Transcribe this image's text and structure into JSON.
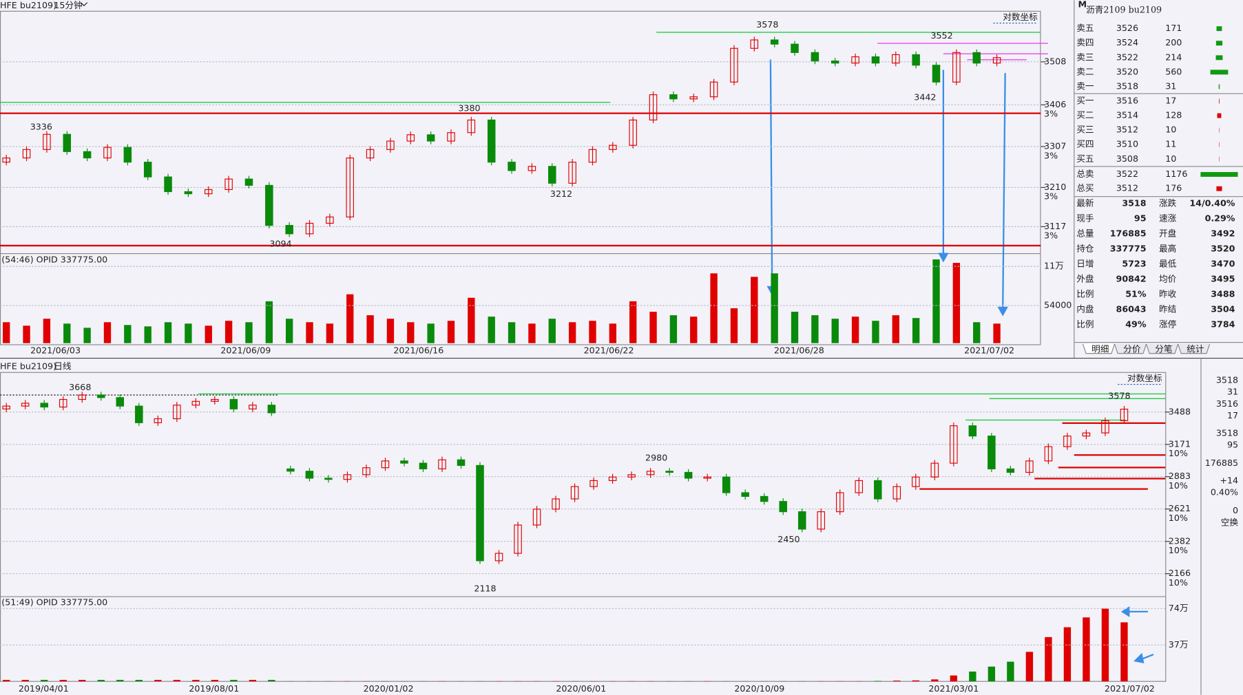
{
  "upper": {
    "symbol": "HFE bu2109)",
    "period": "15分钟",
    "log_label": "对数坐标",
    "ylim": [
      3053,
      3628
    ],
    "yticks": [
      3508,
      3406,
      3307,
      3210,
      3117
    ],
    "pct_labels": [
      "3%",
      "3%",
      "3%",
      "3%"
    ],
    "open": [
      3270,
      3280,
      3300,
      3336,
      3295,
      3280,
      3305,
      3270,
      3235,
      3200,
      3195,
      3205,
      3230,
      3215,
      3120,
      3100,
      3125,
      3140,
      3280,
      3300,
      3320,
      3335,
      3320,
      3340,
      3370,
      3270,
      3250,
      3260,
      3220,
      3270,
      3300,
      3310,
      3370,
      3430,
      3420,
      3425,
      3460,
      3540,
      3560,
      3550,
      3530,
      3510,
      3505,
      3520,
      3505,
      3525,
      3500,
      3460,
      3530,
      3505
    ],
    "close": [
      3280,
      3300,
      3336,
      3295,
      3280,
      3305,
      3270,
      3235,
      3200,
      3195,
      3205,
      3230,
      3215,
      3120,
      3100,
      3125,
      3140,
      3280,
      3300,
      3320,
      3335,
      3320,
      3340,
      3370,
      3270,
      3250,
      3260,
      3220,
      3270,
      3300,
      3310,
      3370,
      3430,
      3420,
      3425,
      3460,
      3540,
      3560,
      3550,
      3530,
      3510,
      3505,
      3520,
      3505,
      3525,
      3500,
      3460,
      3530,
      3505,
      3518
    ],
    "annotations": [
      3578,
      3552,
      3442,
      3380,
      3336,
      3212,
      3094
    ],
    "levels": [
      {
        "value": 3578,
        "color": "#22cc44"
      },
      {
        "value": 3412,
        "color": "#22cc44"
      },
      {
        "value": 3386,
        "color": "#dd0000"
      },
      {
        "value": 3072,
        "color": "#dd0000"
      },
      {
        "value": 3552,
        "color": "#ee44ee"
      },
      {
        "value": 3527,
        "color": "#ee44ee"
      },
      {
        "value": 3513,
        "color": "#ee44ee"
      }
    ],
    "vol_label": "(54:46)  OPID 337775.00",
    "volume": [
      30000,
      25000,
      35000,
      28000,
      22000,
      30000,
      26000,
      24000,
      30000,
      28000,
      25000,
      32000,
      30000,
      60000,
      35000,
      30000,
      28000,
      70000,
      40000,
      35000,
      30000,
      28000,
      32000,
      65000,
      38000,
      30000,
      28000,
      35000,
      30000,
      32000,
      28000,
      60000,
      45000,
      40000,
      38000,
      100000,
      50000,
      95000,
      100000,
      45000,
      40000,
      35000,
      38000,
      32000,
      40000,
      36000,
      120000,
      115000,
      30000,
      28000
    ],
    "vol_ylim": [
      0,
      126000
    ],
    "vol_yticks": [
      {
        "value": 110000,
        "label": "11万"
      },
      54000
    ],
    "dates": [
      "2021/06/03",
      "2021/06/09",
      "2021/06/16",
      "2021/06/22",
      "2021/06/28",
      "2021/07/02"
    ]
  },
  "lower": {
    "symbol": "HFE bu2109)",
    "period": "日线",
    "log_label": "对数坐标",
    "ylim": [
      2029,
      3920
    ],
    "yticks": [
      3488,
      3171,
      2883,
      2621,
      2382,
      2166
    ],
    "pct_labels": [
      "10%",
      "10%",
      "10%",
      "10%",
      "10%"
    ],
    "open": [
      3520,
      3550,
      3580,
      3540,
      3620,
      3668,
      3640,
      3550,
      3380,
      3420,
      3560,
      3600,
      3620,
      3520,
      3560,
      2950,
      2930,
      2870,
      2860,
      2900,
      2960,
      3020,
      3000,
      2950,
      3030,
      2980,
      2250,
      2300,
      2500,
      2620,
      2700,
      2800,
      2850,
      2880,
      2900,
      2930,
      2920,
      2870,
      2880,
      2750,
      2720,
      2680,
      2600,
      2470,
      2600,
      2750,
      2850,
      2700,
      2800,
      2880,
      3000,
      3350,
      3250,
      2950,
      2920,
      3020,
      3150,
      3250,
      3280,
      3400
    ],
    "close": [
      3550,
      3580,
      3540,
      3620,
      3668,
      3640,
      3550,
      3380,
      3420,
      3560,
      3600,
      3620,
      3520,
      3560,
      3480,
      2930,
      2870,
      2860,
      2900,
      2960,
      3020,
      3000,
      2950,
      3030,
      2980,
      2250,
      2300,
      2500,
      2620,
      2700,
      2800,
      2850,
      2880,
      2900,
      2930,
      2920,
      2870,
      2880,
      2750,
      2720,
      2680,
      2600,
      2470,
      2600,
      2750,
      2850,
      2700,
      2800,
      2880,
      3000,
      3350,
      3250,
      2950,
      2920,
      3020,
      3150,
      3250,
      3280,
      3400,
      3518
    ],
    "annotations": [
      3668,
      2980,
      2450,
      2118,
      3578
    ],
    "levels": [
      {
        "value": 3668,
        "color": "#333333"
      },
      {
        "value": 3680,
        "color": "#22cc44"
      },
      {
        "value": 3629,
        "color": "#22cc44"
      },
      {
        "value": 3407,
        "color": "#22cc44"
      },
      {
        "value": 3376,
        "color": "#dd0000"
      },
      {
        "value": 3073,
        "color": "#dd0000"
      },
      {
        "value": 2962,
        "color": "#dd0000"
      },
      {
        "value": 2867,
        "color": "#dd0000"
      },
      {
        "value": 2780,
        "color": "#dd0000"
      }
    ],
    "vol_label": "(51:49)  OPID 337775.00",
    "volume": [
      15000,
      15000,
      15000,
      15000,
      15000,
      15000,
      15000,
      15000,
      15000,
      15000,
      15000,
      15000,
      15000,
      15000,
      15000,
      2000,
      2000,
      2000,
      2000,
      2000,
      2000,
      2000,
      2000,
      2000,
      2000,
      2000,
      2000,
      2000,
      2000,
      2000,
      2000,
      2000,
      2000,
      2000,
      2000,
      2000,
      2000,
      2000,
      2000,
      2000,
      2000,
      2000,
      2000,
      2000,
      2000,
      2000,
      5000,
      8000,
      10000,
      20000,
      60000,
      100000,
      150000,
      200000,
      300000,
      450000,
      550000,
      650000,
      740000,
      600000
    ],
    "vol_ylim": [
      0,
      845000
    ],
    "vol_yticks": [
      {
        "value": 740000,
        "label": "74万"
      },
      {
        "value": 370000,
        "label": "37万"
      }
    ],
    "dates": [
      "2019/04/01",
      "2019/08/01",
      "2020/01/02",
      "2020/06/01",
      "2020/10/09",
      "2021/03/01",
      "2021/07/02"
    ]
  },
  "quote": {
    "logo": "M",
    "title": "沥青2109  bu2109",
    "book": [
      {
        "label": "卖五",
        "price": 3526,
        "volume": 171,
        "color": "#119911"
      },
      {
        "label": "卖四",
        "price": 3524,
        "volume": 200,
        "color": "#119911"
      },
      {
        "label": "卖三",
        "price": 3522,
        "volume": 214,
        "color": "#119911"
      },
      {
        "label": "卖二",
        "price": 3520,
        "volume": 560,
        "color": "#119911"
      },
      {
        "label": "卖一",
        "price": 3518,
        "volume": 31,
        "color": "#119911"
      },
      {
        "label": "买一",
        "price": 3516,
        "volume": 17,
        "color": "#dd0000"
      },
      {
        "label": "买二",
        "price": 3514,
        "volume": 128,
        "color": "#dd0000"
      },
      {
        "label": "买三",
        "price": 3512,
        "volume": 10,
        "color": "#dd0000"
      },
      {
        "label": "买四",
        "price": 3510,
        "volume": 11,
        "color": "#dd0000"
      },
      {
        "label": "买五",
        "price": 3508,
        "volume": 10,
        "color": "#dd0000"
      }
    ],
    "totals": [
      {
        "label": "总卖",
        "price": 3522,
        "volume": 1176,
        "color": "#119911"
      },
      {
        "label": "总买",
        "price": 3512,
        "volume": 176,
        "color": "#dd0000"
      }
    ],
    "stats": [
      [
        "最新",
        3518,
        "涨跌",
        "14/0.40%"
      ],
      [
        "现手",
        95,
        "速涨",
        "0.29%"
      ],
      [
        "总量",
        176885,
        "开盘",
        3492
      ],
      [
        "持仓",
        337775,
        "最高",
        3520
      ],
      [
        "日增",
        5723,
        "最低",
        3470
      ],
      [
        "外盘",
        90842,
        "均价",
        3495
      ],
      [
        "比例",
        "51%",
        "昨收",
        3488
      ],
      [
        "内盘",
        86043,
        "昨结",
        3504
      ],
      [
        "比例",
        "49%",
        "涨停",
        3784
      ]
    ],
    "tabs": [
      "明细",
      "分价",
      "分笔",
      "统计"
    ]
  },
  "side": [
    3518,
    31,
    3516,
    17,
    3518,
    95,
    176885,
    {
      "value": 14,
      "label": "+14"
    },
    {
      "value": 0.4,
      "label": "0.40%"
    },
    0,
    "空换"
  ]
}
